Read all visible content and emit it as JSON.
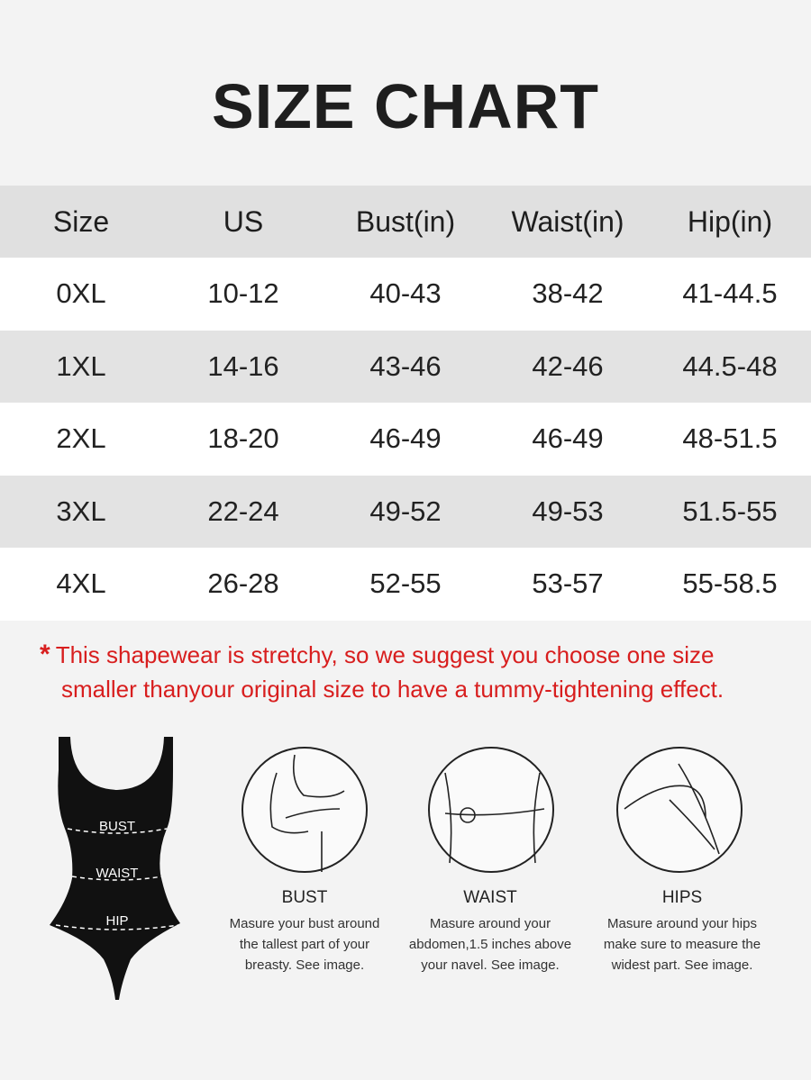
{
  "title": "SIZE CHART",
  "table": {
    "headers": [
      "Size",
      "US",
      "Bust(in)",
      "Waist(in)",
      "Hip(in)"
    ],
    "rows": [
      [
        "0XL",
        "10-12",
        "40-43",
        "38-42",
        "41-44.5"
      ],
      [
        "1XL",
        "14-16",
        "43-46",
        "42-46",
        "44.5-48"
      ],
      [
        "2XL",
        "18-20",
        "46-49",
        "46-49",
        "48-51.5"
      ],
      [
        "3XL",
        "22-24",
        "49-52",
        "49-53",
        "51.5-55"
      ],
      [
        "4XL",
        "26-28",
        "52-55",
        "53-57",
        "55-58.5"
      ]
    ]
  },
  "note": {
    "star": "*",
    "line1": "This shapewear is stretchy, so we suggest you choose one size",
    "line2": "smaller thanyour original size to have a tummy-tightening effect.",
    "color": "#d81e1e"
  },
  "bodysuit_labels": {
    "bust": "BUST",
    "waist": "WAIST",
    "hip": "HIP"
  },
  "guides": [
    {
      "icon": "bust-measure-icon",
      "title": "BUST",
      "lines": [
        "Masure your bust around",
        "the tallest part of your",
        "breasty. See image."
      ]
    },
    {
      "icon": "waist-measure-icon",
      "title": "WAIST",
      "lines": [
        "Masure around your",
        "abdomen,1.5 inches above",
        "your navel. See image."
      ]
    },
    {
      "icon": "hips-measure-icon",
      "title": "HIPS",
      "lines": [
        "Masure around your hips",
        "make sure to measure the",
        "widest part. See image."
      ]
    }
  ]
}
